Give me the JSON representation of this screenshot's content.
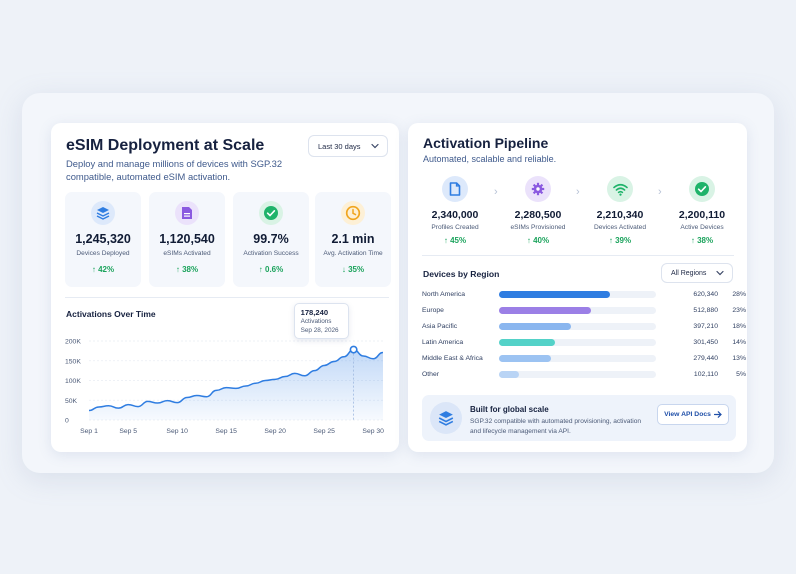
{
  "deployment": {
    "title": "eSIM Deployment at Scale",
    "subtitle_line1": "Deploy and manage millions of devices with SGP.32",
    "subtitle_line2": "compatible, automated eSIM activation.",
    "period_select": "Last 30 days",
    "kpis": [
      {
        "value": "1,245,320",
        "label": "Devices Deployed",
        "change": "↑ 42%",
        "icon": "layers-icon",
        "color": "#2f7de1",
        "bg": "#dde9fb"
      },
      {
        "value": "1,120,540",
        "label": "eSIMs Activated",
        "change": "↑ 38%",
        "icon": "sim-document-icon",
        "color": "#8a59e0",
        "bg": "#ebe2fb"
      },
      {
        "value": "99.7%",
        "label": "Activation Success",
        "change": "↑ 0.6%",
        "icon": "check-circle-icon",
        "color": "#1fb36a",
        "bg": "#d9f3e5"
      },
      {
        "value": "2.1 min",
        "label": "Avg. Activation Time",
        "change": "↓ 35%",
        "icon": "clock-icon",
        "color": "#f0a51f",
        "bg": "#fdf0d6"
      }
    ]
  },
  "activations_chart": {
    "title": "Activations Over Time",
    "tooltip": {
      "value": "178,240",
      "label": "Activations",
      "date": "Sep 28, 2026"
    }
  },
  "chart_data": {
    "type": "area",
    "title": "Activations Over Time",
    "xlabel": "",
    "ylabel": "",
    "x_ticks": [
      "Sep 1",
      "Sep 5",
      "Sep 10",
      "Sep 15",
      "Sep 20",
      "Sep 25",
      "Sep 30"
    ],
    "y_ticks": [
      "0",
      "50K",
      "100K",
      "150K",
      "200K"
    ],
    "ylim": [
      0,
      200000
    ],
    "xlim": [
      1,
      31
    ],
    "grid": true,
    "series": [
      {
        "name": "",
        "x": [
          1,
          2,
          3,
          4,
          5,
          6,
          7,
          8,
          9,
          10,
          11,
          12,
          13,
          14,
          15,
          16,
          17,
          18,
          19,
          20,
          21,
          22,
          23,
          24,
          25,
          26,
          27,
          28,
          29,
          30,
          31
        ],
        "values": [
          24000,
          33000,
          36000,
          30000,
          39000,
          34000,
          47000,
          43000,
          49000,
          44000,
          57000,
          62000,
          59000,
          75000,
          82000,
          80000,
          86000,
          93000,
          100000,
          103000,
          110000,
          118000,
          112000,
          125000,
          138000,
          148000,
          160000,
          178240,
          162000,
          155000,
          171000
        ]
      }
    ],
    "highlight_x": 28
  },
  "pipeline": {
    "title": "Activation Pipeline",
    "subtitle": "Automated, scalable and reliable.",
    "stages": [
      {
        "value": "2,340,000",
        "label": "Profiles Created",
        "change": "↑ 45%",
        "icon": "document-icon",
        "color": "#2f7de1",
        "bg": "#dde9fb"
      },
      {
        "value": "2,280,500",
        "label": "eSIMs Provisioned",
        "change": "↑ 40%",
        "icon": "gear-icon",
        "color": "#8a59e0",
        "bg": "#ebe2fb"
      },
      {
        "value": "2,210,340",
        "label": "Devices Activated",
        "change": "↑ 39%",
        "icon": "wifi-icon",
        "color": "#1fb36a",
        "bg": "#d9f3e5"
      },
      {
        "value": "2,200,110",
        "label": "Active Devices",
        "change": "↑ 38%",
        "icon": "check-circle-icon",
        "color": "#1fb36a",
        "bg": "#d9f3e5"
      }
    ]
  },
  "regions": {
    "title": "Devices by Region",
    "select": "All Regions",
    "rows": [
      {
        "name": "North America",
        "value": "620,340",
        "pct": "28%",
        "share": 0.28,
        "color": "#2f7de1"
      },
      {
        "name": "Europe",
        "value": "512,880",
        "pct": "23%",
        "share": 0.23,
        "color": "#9b7fe6"
      },
      {
        "name": "Asia Pacific",
        "value": "397,210",
        "pct": "18%",
        "share": 0.18,
        "color": "#8ab6ef"
      },
      {
        "name": "Latin America",
        "value": "301,450",
        "pct": "14%",
        "share": 0.14,
        "color": "#54d2c8"
      },
      {
        "name": "Middle East & Africa",
        "value": "279,440",
        "pct": "13%",
        "share": 0.13,
        "color": "#9cc3f2"
      },
      {
        "name": "Other",
        "value": "102,110",
        "pct": "5%",
        "share": 0.05,
        "color": "#b9d4f5"
      }
    ]
  },
  "banner": {
    "title": "Built for global scale",
    "text": "SGP.32 compatible with automated provisioning, activation and lifecycle management via API.",
    "button": "View API Docs"
  }
}
